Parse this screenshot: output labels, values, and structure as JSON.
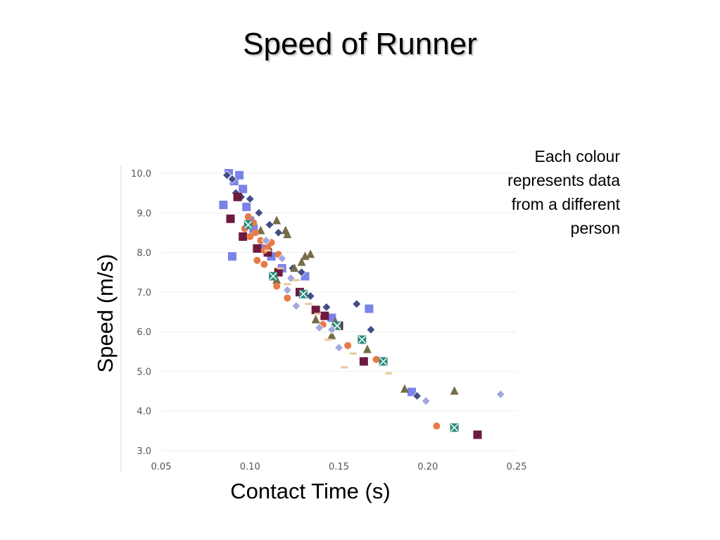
{
  "title": "Speed of Runner",
  "note": [
    "Each colour",
    "represents data",
    "from a different",
    "person"
  ],
  "chart_data": {
    "type": "scatter",
    "xlabel": "Contact Time (s)",
    "ylabel": "Speed (m/s)",
    "xlim": [
      0.05,
      0.25
    ],
    "ylim": [
      3.0,
      10.0
    ],
    "xticks": [
      "0.05",
      "0.10",
      "0.15",
      "0.20",
      "0.25"
    ],
    "yticks": [
      "3.0",
      "4.0",
      "5.0",
      "6.0",
      "7.0",
      "8.0",
      "9.0",
      "10.0"
    ],
    "grid": true,
    "colors": [
      "#7b83e8",
      "#444e86",
      "#6e1a3e",
      "#756c48",
      "#e87a48",
      "#2a8a7a",
      "#a3a8dc",
      "#e8c89a"
    ],
    "series": [
      {
        "marker": "square",
        "color": "#7b83e8",
        "points": [
          [
            0.088,
            10.0
          ],
          [
            0.094,
            9.95
          ],
          [
            0.091,
            9.8
          ],
          [
            0.096,
            9.6
          ],
          [
            0.085,
            9.2
          ],
          [
            0.098,
            9.15
          ],
          [
            0.1,
            8.8
          ],
          [
            0.102,
            8.6
          ],
          [
            0.107,
            8.1
          ],
          [
            0.112,
            7.9
          ],
          [
            0.118,
            7.6
          ],
          [
            0.131,
            7.4
          ],
          [
            0.146,
            6.35
          ],
          [
            0.167,
            6.58
          ],
          [
            0.09,
            7.9
          ],
          [
            0.191,
            4.48
          ]
        ]
      },
      {
        "marker": "diamond",
        "color": "#444e86",
        "points": [
          [
            0.087,
            9.95
          ],
          [
            0.09,
            9.85
          ],
          [
            0.092,
            9.5
          ],
          [
            0.095,
            9.4
          ],
          [
            0.1,
            9.35
          ],
          [
            0.105,
            9.0
          ],
          [
            0.111,
            8.7
          ],
          [
            0.116,
            8.5
          ],
          [
            0.124,
            7.6
          ],
          [
            0.134,
            6.9
          ],
          [
            0.143,
            6.62
          ],
          [
            0.16,
            6.7
          ],
          [
            0.168,
            6.05
          ],
          [
            0.194,
            4.38
          ],
          [
            0.129,
            7.5
          ]
        ]
      },
      {
        "marker": "square",
        "color": "#6e1a3e",
        "points": [
          [
            0.093,
            9.4
          ],
          [
            0.089,
            8.85
          ],
          [
            0.096,
            8.4
          ],
          [
            0.104,
            8.1
          ],
          [
            0.11,
            8.0
          ],
          [
            0.116,
            7.5
          ],
          [
            0.128,
            7.0
          ],
          [
            0.137,
            6.55
          ],
          [
            0.15,
            6.15
          ],
          [
            0.164,
            5.25
          ],
          [
            0.228,
            3.4
          ],
          [
            0.142,
            6.4
          ]
        ]
      },
      {
        "marker": "triangle",
        "color": "#756c48",
        "points": [
          [
            0.106,
            8.55
          ],
          [
            0.115,
            8.8
          ],
          [
            0.12,
            8.55
          ],
          [
            0.121,
            8.45
          ],
          [
            0.125,
            7.6
          ],
          [
            0.129,
            7.75
          ],
          [
            0.131,
            7.9
          ],
          [
            0.134,
            7.95
          ],
          [
            0.137,
            6.3
          ],
          [
            0.146,
            5.9
          ],
          [
            0.148,
            6.25
          ],
          [
            0.166,
            5.55
          ],
          [
            0.187,
            4.55
          ],
          [
            0.215,
            4.5
          ],
          [
            0.115,
            7.3
          ]
        ]
      },
      {
        "marker": "circle",
        "color": "#e87a48",
        "points": [
          [
            0.097,
            8.6
          ],
          [
            0.1,
            8.4
          ],
          [
            0.103,
            8.5
          ],
          [
            0.106,
            8.3
          ],
          [
            0.108,
            8.05
          ],
          [
            0.11,
            8.15
          ],
          [
            0.112,
            8.25
          ],
          [
            0.104,
            7.8
          ],
          [
            0.116,
            7.95
          ],
          [
            0.099,
            8.9
          ],
          [
            0.102,
            8.75
          ],
          [
            0.115,
            7.15
          ],
          [
            0.121,
            6.85
          ],
          [
            0.141,
            6.18
          ],
          [
            0.155,
            5.65
          ],
          [
            0.171,
            5.3
          ],
          [
            0.205,
            3.62
          ],
          [
            0.108,
            7.7
          ]
        ]
      },
      {
        "marker": "square-x",
        "color": "#2a8a7a",
        "points": [
          [
            0.099,
            8.7
          ],
          [
            0.113,
            7.4
          ],
          [
            0.13,
            6.95
          ],
          [
            0.149,
            6.15
          ],
          [
            0.163,
            5.8
          ],
          [
            0.175,
            5.25
          ],
          [
            0.215,
            3.58
          ]
        ]
      },
      {
        "marker": "diamond",
        "color": "#a3a8dc",
        "points": [
          [
            0.109,
            8.3
          ],
          [
            0.118,
            7.85
          ],
          [
            0.123,
            7.35
          ],
          [
            0.126,
            6.65
          ],
          [
            0.139,
            6.1
          ],
          [
            0.146,
            6.05
          ],
          [
            0.15,
            5.6
          ],
          [
            0.199,
            4.25
          ],
          [
            0.241,
            4.42
          ],
          [
            0.121,
            7.05
          ]
        ]
      },
      {
        "marker": "dash",
        "color": "#e8c89a",
        "points": [
          [
            0.11,
            8.05
          ],
          [
            0.117,
            7.6
          ],
          [
            0.121,
            7.2
          ],
          [
            0.126,
            7.3
          ],
          [
            0.133,
            6.7
          ],
          [
            0.138,
            6.45
          ],
          [
            0.144,
            5.8
          ],
          [
            0.158,
            5.45
          ],
          [
            0.178,
            4.95
          ],
          [
            0.153,
            5.1
          ]
        ]
      }
    ]
  }
}
